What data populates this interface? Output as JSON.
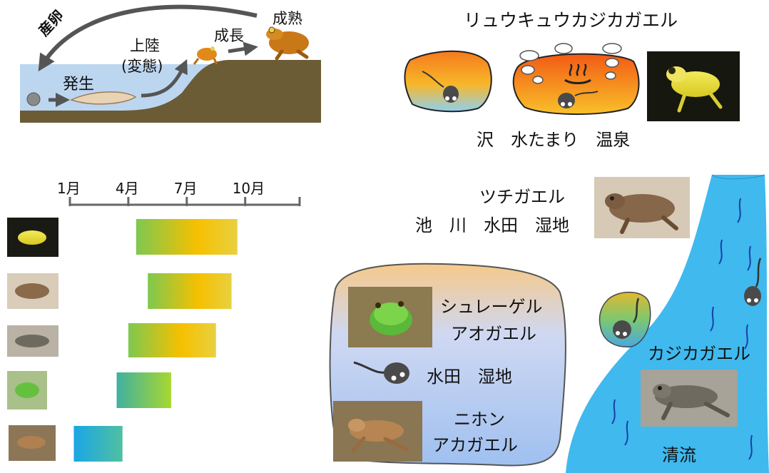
{
  "lifecycle": {
    "spawn": "産卵",
    "development": "発生",
    "landing_line1": "上陸",
    "landing_line2": "(変態)",
    "growth": "成長",
    "maturity": "成熟"
  },
  "timeline": {
    "months": [
      "1月",
      "4月",
      "7月",
      "10月"
    ],
    "month_ticks": [
      1,
      4,
      7,
      10
    ],
    "axis_range": [
      1,
      12
    ],
    "bars": [
      {
        "species": "リュウキュウカジカガエル",
        "start": 4.4,
        "end": 9.6
      },
      {
        "species": "ツチガエル",
        "start": 5.0,
        "end": 9.3
      },
      {
        "species": "カジカガエル",
        "start": 4.0,
        "end": 8.5
      },
      {
        "species": "シュレーゲルアオガエル",
        "start": 3.4,
        "end": 6.2
      },
      {
        "species": "ニホンアカガエル",
        "start": 1.2,
        "end": 3.7
      }
    ]
  },
  "ryukyu": {
    "name": "リュウキュウカジカガエル",
    "habitats": "沢　水たまり　温泉"
  },
  "tsuchi": {
    "name": "ツチガエル",
    "habitats": "池　川　水田　湿地"
  },
  "pond": {
    "schlegel_line1": "シュレーゲル",
    "schlegel_line2": "アオガエル",
    "habitats": "水田　湿地",
    "nihon_line1": "ニホン",
    "nihon_line2": "アカガエル"
  },
  "stream": {
    "kajika": "カジカガエル",
    "habitat": "清流"
  },
  "colors": {
    "water": "#bcd6f0",
    "ground": "#6b5c36",
    "stream": "#3fb9ee",
    "arrow": "#555555",
    "gradient_green": "#7ec850",
    "gradient_yellow": "#f6c000",
    "gradient_blue": "#1aa6e6"
  }
}
